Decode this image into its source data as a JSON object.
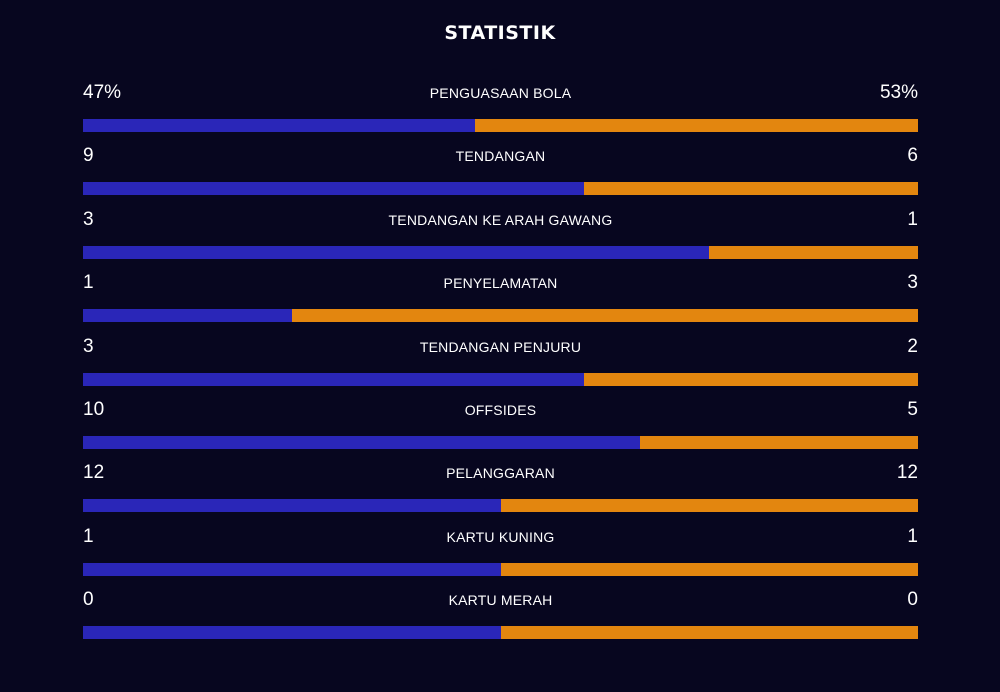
{
  "title": "STATISTIK",
  "colors": {
    "background": "#07061f",
    "home_bar": "#2a26b8",
    "away_bar": "#e3860f",
    "text": "#ffffff"
  },
  "stats": [
    {
      "label": "PENGUASAAN BOLA",
      "home": "47%",
      "away": "53%",
      "home_value": 47,
      "away_value": 53
    },
    {
      "label": "TENDANGAN",
      "home": "9",
      "away": "6",
      "home_value": 9,
      "away_value": 6
    },
    {
      "label": "TENDANGAN KE ARAH GAWANG",
      "home": "3",
      "away": "1",
      "home_value": 3,
      "away_value": 1
    },
    {
      "label": "PENYELAMATAN",
      "home": "1",
      "away": "3",
      "home_value": 1,
      "away_value": 3
    },
    {
      "label": "TENDANGAN PENJURU",
      "home": "3",
      "away": "2",
      "home_value": 3,
      "away_value": 2
    },
    {
      "label": "OFFSIDES",
      "home": "10",
      "away": "5",
      "home_value": 10,
      "away_value": 5
    },
    {
      "label": "PELANGGARAN",
      "home": "12",
      "away": "12",
      "home_value": 12,
      "away_value": 12
    },
    {
      "label": "KARTU KUNING",
      "home": "1",
      "away": "1",
      "home_value": 1,
      "away_value": 1
    },
    {
      "label": "KARTU MERAH",
      "home": "0",
      "away": "0",
      "home_value": 0,
      "away_value": 0
    }
  ]
}
